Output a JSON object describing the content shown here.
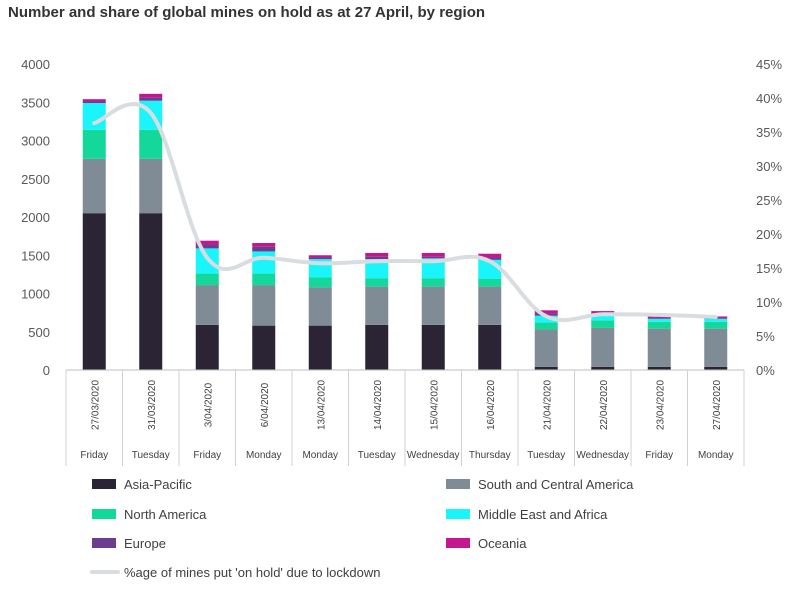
{
  "chart_data": {
    "type": "bar",
    "stacked": true,
    "title": "Number and share of global mines on hold as at 27 April, by region",
    "categories": [
      "27/03/2020",
      "31/03/2020",
      "3/04/2020",
      "6/04/2020",
      "13/04/2020",
      "14/04/2020",
      "15/04/2020",
      "16/04/2020",
      "21/04/2020",
      "22/04/2020",
      "23/04/2020",
      "27/04/2020"
    ],
    "day_labels": [
      "Friday",
      "Tuesday",
      "Friday",
      "Monday",
      "Monday",
      "Tuesday",
      "Wednesday",
      "Thursday",
      "Tuesday",
      "Wednesday",
      "Friday",
      "Monday"
    ],
    "ylim": [
      0,
      4000
    ],
    "yticks": [
      0,
      500,
      1000,
      1500,
      2000,
      2500,
      3000,
      3500,
      4000
    ],
    "y2lim": [
      0,
      45
    ],
    "y2ticks": [
      "0%",
      "5%",
      "10%",
      "15%",
      "20%",
      "25%",
      "30%",
      "35%",
      "40%",
      "45%"
    ],
    "series": [
      {
        "name": "Asia-Pacific",
        "color": "#2b2435",
        "values": [
          2050,
          2050,
          590,
          580,
          580,
          590,
          590,
          590,
          40,
          40,
          40,
          40
        ]
      },
      {
        "name": "South and Central America",
        "color": "#7f8c96",
        "values": [
          710,
          710,
          520,
          530,
          500,
          500,
          500,
          500,
          490,
          510,
          500,
          500
        ]
      },
      {
        "name": "North America",
        "color": "#14d79a",
        "values": [
          380,
          380,
          150,
          150,
          130,
          110,
          110,
          100,
          90,
          100,
          90,
          90
        ]
      },
      {
        "name": "Middle East and Africa",
        "color": "#19f5fa",
        "values": [
          350,
          380,
          330,
          290,
          240,
          250,
          260,
          250,
          90,
          60,
          40,
          40
        ]
      },
      {
        "name": "Europe",
        "color": "#6a3d8f",
        "values": [
          20,
          40,
          50,
          60,
          20,
          30,
          20,
          30,
          30,
          20,
          10,
          10
        ]
      },
      {
        "name": "Oceania",
        "color": "#c4168f",
        "values": [
          30,
          50,
          50,
          50,
          30,
          50,
          50,
          50,
          40,
          40,
          20,
          20
        ]
      }
    ],
    "line": {
      "name": "%age of mines put 'on hold' due to lockdown",
      "color": "#d9dde0",
      "values": [
        36.3,
        37.8,
        16.5,
        16.5,
        15.7,
        16.0,
        16.0,
        16.0,
        7.9,
        8.2,
        8.1,
        7.8
      ]
    },
    "legend_position": "bottom",
    "grid": false
  }
}
